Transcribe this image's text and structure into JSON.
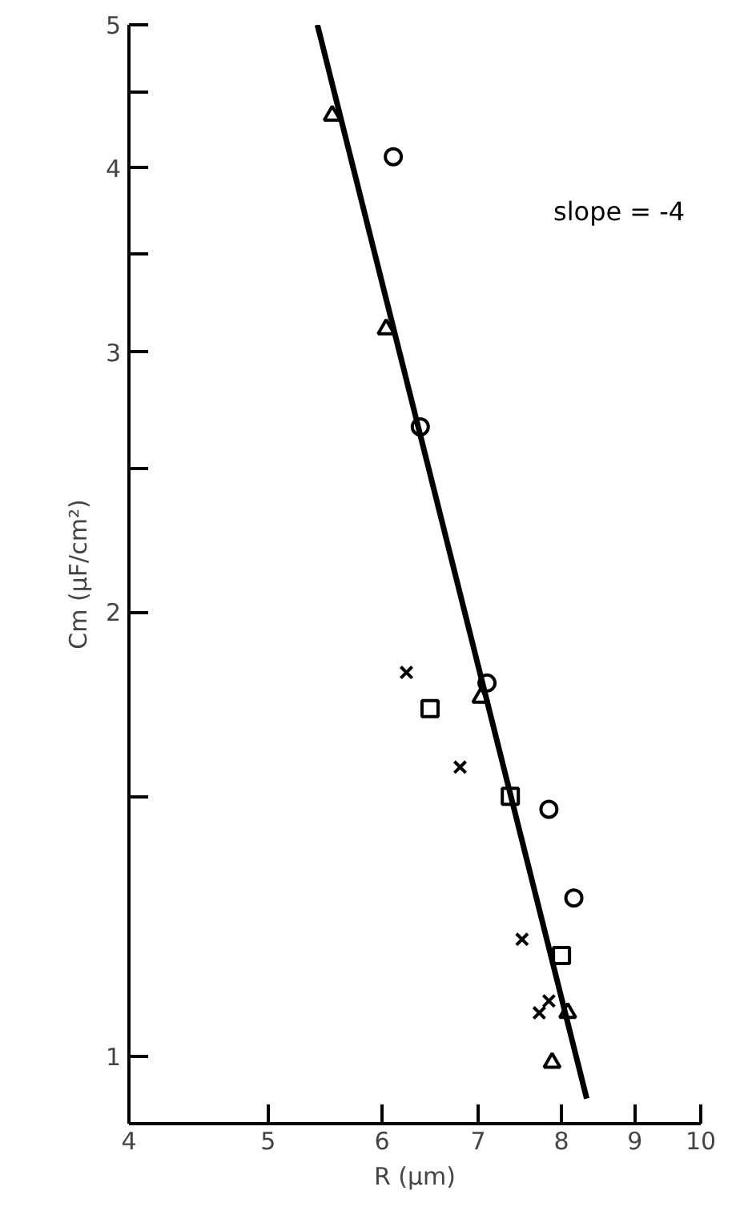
{
  "chart_data": {
    "type": "scatter",
    "xlabel": "R (μm)",
    "ylabel": "Cm (μF/cm²)",
    "log": "xy",
    "grid": false,
    "xlim": [
      4,
      10
    ],
    "xticks": [
      4,
      5,
      6,
      7,
      8,
      9,
      10
    ],
    "ylim": [
      0.9,
      5
    ],
    "yticks": [
      1,
      {
        "value": 1.5,
        "label": null
      },
      2,
      {
        "value": 2.5,
        "label": null
      },
      3,
      {
        "value": 3.5,
        "label": null
      },
      4,
      {
        "value": 4.5,
        "label": null
      },
      5
    ],
    "annotations": [
      "slope = -4"
    ],
    "series": [
      {
        "color": "#000000",
        "marker": "triangle",
        "x": [
          5.54,
          6.04,
          7.03,
          8.08,
          7.88
        ],
        "values": [
          4.34,
          3.11,
          1.75,
          1.07,
          0.99
        ]
      },
      {
        "color": "#000000",
        "marker": "circle",
        "x": [
          6.11,
          6.38,
          7.1,
          7.84,
          8.16
        ],
        "values": [
          4.07,
          2.67,
          1.79,
          1.47,
          1.28
        ]
      },
      {
        "color": "#000000",
        "marker": "square",
        "x": [
          6.48,
          7.37,
          8.0
        ],
        "values": [
          1.72,
          1.5,
          1.17
        ]
      },
      {
        "color": "#000000",
        "marker": "cross",
        "x": [
          6.24,
          6.8,
          7.51,
          7.84,
          7.72
        ],
        "values": [
          1.82,
          1.57,
          1.2,
          1.09,
          1.07
        ]
      },
      {
        "type": "line",
        "color": "#000000",
        "marker": "none",
        "line_style": "solid",
        "x": [
          5.41,
          8.33
        ],
        "values": [
          5,
          0.936
        ]
      }
    ]
  }
}
